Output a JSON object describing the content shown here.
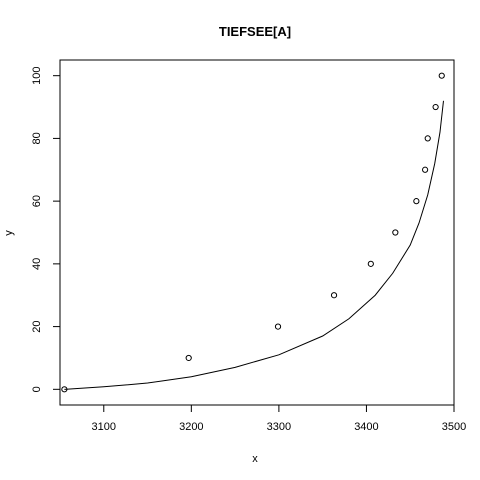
{
  "chart_data": {
    "type": "scatter",
    "title": "TIEFSEE[A]",
    "xlabel": "x",
    "ylabel": "y",
    "xlim": [
      3050,
      3500
    ],
    "ylim": [
      -5,
      105
    ],
    "xticks": [
      3100,
      3200,
      3300,
      3400,
      3500
    ],
    "yticks": [
      0,
      20,
      40,
      60,
      80,
      100
    ],
    "grid": false,
    "legend": "none",
    "series": [
      {
        "kind": "points",
        "marker": "open-circle",
        "x": [
          3055,
          3197,
          3299,
          3363,
          3405,
          3433,
          3457,
          3467,
          3470,
          3479,
          3486
        ],
        "y": [
          0,
          10,
          20,
          30,
          40,
          50,
          60,
          70,
          80,
          90,
          100
        ]
      },
      {
        "kind": "line",
        "x": [
          3055,
          3100,
          3150,
          3200,
          3250,
          3300,
          3350,
          3380,
          3410,
          3430,
          3450,
          3460,
          3470,
          3478,
          3484,
          3488
        ],
        "y": [
          0,
          0.8,
          2,
          4,
          7,
          11,
          17,
          22.5,
          30,
          37,
          46,
          53,
          62,
          72,
          82,
          92
        ]
      }
    ],
    "colors": {
      "ink": "#000000",
      "background": "#ffffff"
    }
  }
}
